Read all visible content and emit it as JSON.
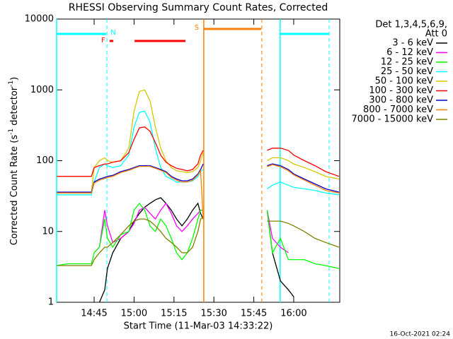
{
  "chart_data": {
    "type": "line",
    "title": "RHESSI Observing Summary Count Rates, Corrected",
    "xlabel": "Start Time (11-Mar-03 14:33:22)",
    "ylabel": [
      "Corrected Count Rate (s",
      "-1",
      " detector",
      "-1",
      ")"
    ],
    "legend_header": [
      "Det 1,3,4,5,6,9,",
      "Att 0"
    ],
    "timestamp": "16-Oct-2021 02:24",
    "log_y": true,
    "xlim": [
      30.9,
      137.3
    ],
    "xticks": [
      {
        "value": 45,
        "label": "14:45"
      },
      {
        "value": 60,
        "label": "15:00"
      },
      {
        "value": 75,
        "label": "15:15"
      },
      {
        "value": 90,
        "label": "15:30"
      },
      {
        "value": 105,
        "label": "15:45"
      },
      {
        "value": 120,
        "label": "16:00"
      }
    ],
    "ylim": [
      1,
      10000
    ],
    "yticks": [
      1,
      10,
      100,
      1000,
      10000
    ],
    "x": [
      31,
      35,
      40,
      44,
      45,
      47,
      49,
      50,
      52,
      55,
      58,
      60,
      62,
      64,
      66,
      68,
      70,
      72,
      74,
      76,
      78,
      80,
      82,
      84,
      85,
      86,
      87,
      110,
      112,
      115,
      118,
      120,
      124,
      128,
      132,
      137
    ],
    "series": [
      {
        "name": "3 - 6 keV",
        "color": "#000000",
        "values": [
          null,
          null,
          null,
          null,
          null,
          1,
          1.5,
          3,
          5,
          8,
          10,
          14,
          18,
          22,
          25,
          28,
          30,
          25,
          20,
          15,
          12,
          15,
          20,
          25,
          18,
          15,
          null,
          20,
          5,
          2,
          1.5,
          1.2,
          null,
          null,
          null,
          null
        ]
      },
      {
        "name": "6 - 12 keV",
        "color": "#ff00ff",
        "values": [
          null,
          null,
          null,
          null,
          5,
          6,
          20,
          12,
          7,
          8,
          10,
          13,
          20,
          22,
          18,
          15,
          20,
          25,
          18,
          12,
          10,
          12,
          15,
          18,
          20,
          20,
          null,
          20,
          8,
          6,
          5,
          null,
          null,
          null,
          null,
          null
        ]
      },
      {
        "name": "12 - 25 keV",
        "color": "#00ff00",
        "values": [
          3.3,
          3.5,
          3.5,
          3.5,
          5,
          6,
          15,
          8,
          6,
          9,
          10,
          20,
          25,
          20,
          12,
          10,
          15,
          12,
          8,
          5,
          4,
          5,
          8,
          15,
          20,
          20,
          null,
          20,
          5,
          8,
          4,
          4,
          4,
          3.5,
          3.3,
          3
        ]
      },
      {
        "name": "25 - 50 keV",
        "color": "#00ffff",
        "values": [
          33,
          33,
          33,
          33,
          50,
          80,
          90,
          85,
          80,
          85,
          120,
          300,
          480,
          500,
          350,
          150,
          80,
          60,
          55,
          50,
          50,
          50,
          52,
          60,
          70,
          75,
          null,
          40,
          45,
          50,
          45,
          42,
          40,
          38,
          35,
          33
        ]
      },
      {
        "name": "50 - 100 keV",
        "color": "#d8c800",
        "values": [
          35,
          35,
          35,
          35,
          80,
          100,
          110,
          100,
          95,
          100,
          150,
          500,
          950,
          1000,
          700,
          300,
          150,
          100,
          80,
          72,
          70,
          68,
          70,
          80,
          100,
          130,
          null,
          100,
          110,
          110,
          100,
          90,
          80,
          70,
          60,
          55
        ]
      },
      {
        "name": "100 - 300 keV",
        "color": "#ff0000",
        "values": [
          60,
          60,
          60,
          60,
          80,
          85,
          90,
          90,
          95,
          100,
          130,
          200,
          290,
          300,
          260,
          180,
          120,
          95,
          85,
          78,
          75,
          72,
          75,
          90,
          120,
          140,
          null,
          140,
          150,
          150,
          140,
          120,
          100,
          85,
          70,
          60
        ]
      },
      {
        "name": "300 - 800 keV",
        "color": "#0000cc",
        "values": [
          36,
          36,
          36,
          36,
          50,
          55,
          58,
          60,
          62,
          70,
          75,
          80,
          85,
          85,
          85,
          80,
          75,
          70,
          60,
          55,
          52,
          52,
          55,
          65,
          75,
          90,
          null,
          85,
          90,
          85,
          75,
          65,
          55,
          47,
          40,
          36
        ]
      },
      {
        "name": "800 - 7000 keV",
        "color": "#ff8000",
        "values": [
          35,
          35,
          35,
          35,
          48,
          53,
          56,
          58,
          60,
          68,
          73,
          78,
          83,
          83,
          83,
          78,
          73,
          68,
          58,
          53,
          50,
          50,
          53,
          63,
          72,
          15,
          null,
          82,
          88,
          82,
          72,
          63,
          53,
          45,
          38,
          35
        ]
      },
      {
        "name": "7000 - 15000 keV",
        "color": "#808000",
        "values": [
          3.3,
          3.3,
          3.3,
          3.3,
          4,
          5,
          6,
          6,
          7,
          9,
          12,
          14,
          15,
          15,
          14,
          12,
          10,
          8,
          7,
          6,
          5,
          5,
          6,
          10,
          15,
          16,
          null,
          14,
          14,
          14,
          13,
          12,
          10,
          8,
          7,
          6
        ]
      }
    ],
    "flags": [
      {
        "label": "N",
        "color": "#00ffff",
        "bars": [
          [
            30.9,
            49.5
          ],
          [
            114.9,
            133.3
          ]
        ],
        "solid": [
          30.9,
          114.9
        ],
        "dashed": [
          49.8,
          133.3
        ]
      },
      {
        "label": "S",
        "color": "#ff8000",
        "bars": [
          [
            86.2,
            107.8
          ]
        ],
        "solid": [
          86.2
        ],
        "dashed": [
          108.0
        ]
      },
      {
        "label": "F",
        "color": "#ff0000",
        "bars": [
          [
            50.8,
            52.2
          ],
          [
            60.2,
            79.3
          ]
        ],
        "solid": [],
        "dashed": []
      }
    ]
  }
}
